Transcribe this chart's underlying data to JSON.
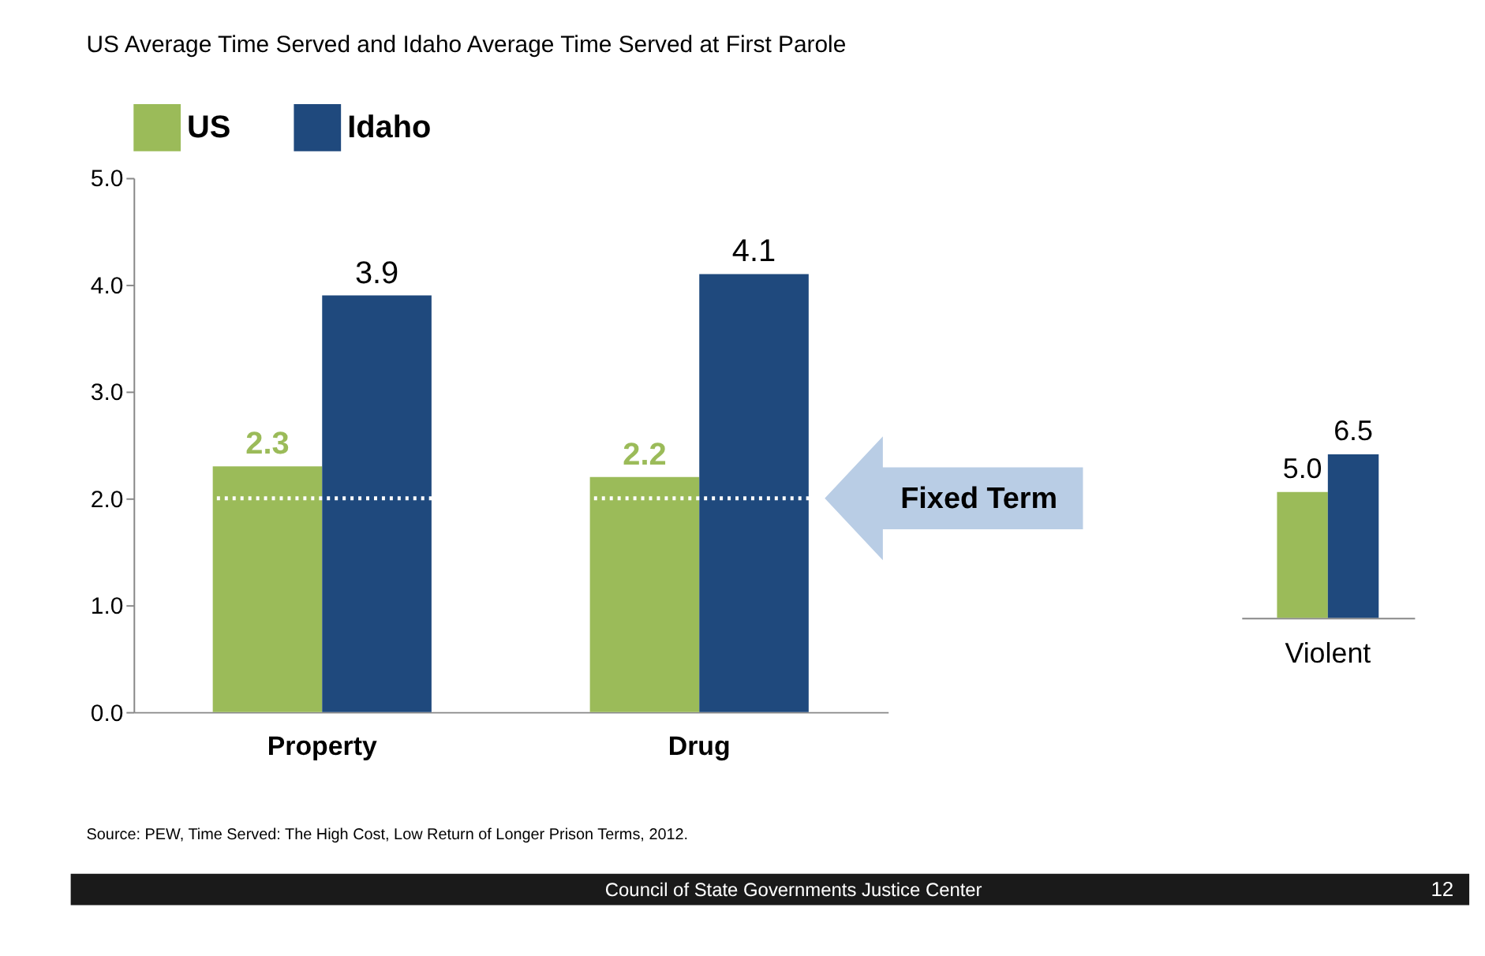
{
  "chart_data": [
    {
      "type": "bar",
      "title": "US Average Time Served and Idaho Average Time Served at First Parole",
      "categories": [
        "Property",
        "Drug"
      ],
      "series": [
        {
          "name": "US",
          "color": "#9bbb59",
          "values": [
            2.3,
            2.2
          ]
        },
        {
          "name": "Idaho",
          "color": "#1f497d",
          "values": [
            3.9,
            4.1
          ]
        }
      ],
      "ylim": [
        0,
        5
      ],
      "yticks": [
        {
          "value": 0,
          "label": "0.0"
        },
        {
          "value": 1,
          "label": "1.0"
        },
        {
          "value": 2,
          "label": "2.0"
        },
        {
          "value": 3,
          "label": "3.0"
        },
        {
          "value": 4,
          "label": "4.0"
        },
        {
          "value": 5,
          "label": "5.0"
        }
      ],
      "data_labels": true,
      "legend": "top left",
      "ref_lines": [
        {
          "axis": "y",
          "value": 2,
          "label": "Fixed Term",
          "color": "#ffffff",
          "line_style": "dotted"
        }
      ],
      "annotations": [
        "Source:  PEW, Time Served: The High Cost, Low Return of Longer Prison Terms, 2012.",
        "Council of State Governments Justice Center",
        "12"
      ]
    },
    {
      "type": "bar",
      "categories": [
        "Violent"
      ],
      "series": [
        {
          "color": "#9bbb59",
          "values": [
            5.0
          ],
          "value_labels": [
            "5.0"
          ]
        },
        {
          "color": "#1f497d",
          "values": [
            6.5
          ],
          "value_labels": [
            "6.5"
          ]
        }
      ],
      "data_labels": true,
      "tick_labels": "x"
    }
  ]
}
